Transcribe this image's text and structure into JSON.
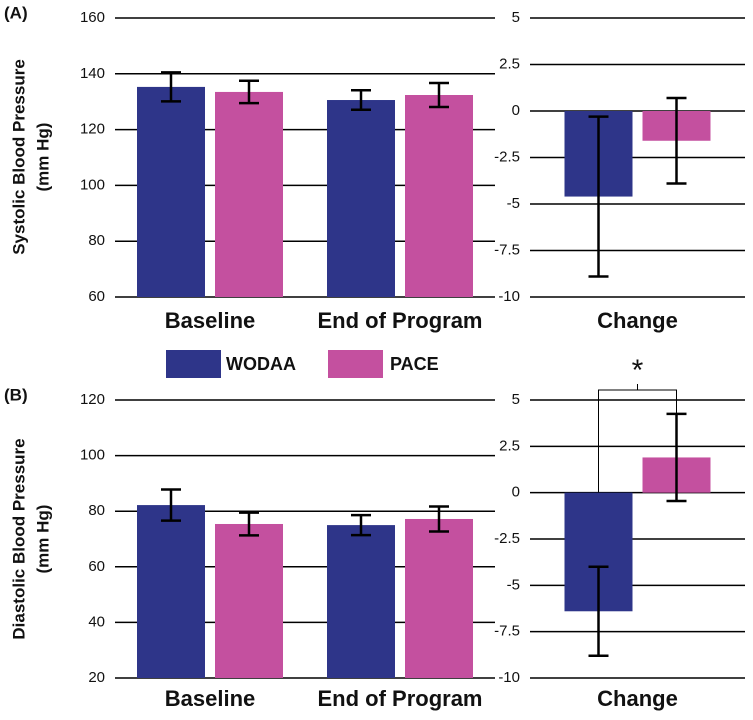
{
  "chart_data": [
    {
      "type": "bar",
      "panel_label": "(A)",
      "ylabel": [
        "Systolic Blood Pressure",
        "(mm Hg)"
      ],
      "categories": [
        "Baseline",
        "End of Program"
      ],
      "series": [
        {
          "name": "WODAA",
          "color": "#2e3589",
          "values": [
            135.3,
            130.6
          ],
          "errors": [
            5.2,
            3.5
          ]
        },
        {
          "name": "PACE",
          "color": "#c4509f",
          "values": [
            133.5,
            132.4
          ],
          "errors": [
            4.0,
            4.3
          ]
        }
      ],
      "ylim": [
        60,
        160
      ],
      "yticks": [
        60,
        80,
        100,
        120,
        140,
        160
      ],
      "grid": true,
      "legend": true
    },
    {
      "type": "bar",
      "categories": [
        "Change"
      ],
      "series": [
        {
          "color": "#2e3589",
          "values": [
            -4.6
          ],
          "errors": [
            4.3
          ]
        },
        {
          "color": "#c4509f",
          "values": [
            -1.6
          ],
          "errors": [
            2.3
          ]
        }
      ],
      "ylim": [
        -10,
        5
      ],
      "yticks": [
        -10,
        -7.5,
        -5,
        -2.5,
        0,
        2.5,
        5
      ],
      "grid": true
    },
    {
      "type": "bar",
      "panel_label": "(B)",
      "ylabel": [
        "Diastolic Blood Pressure",
        "(mm Hg)"
      ],
      "categories": [
        "Baseline",
        "End of Program"
      ],
      "series": [
        {
          "color": "#2e3589",
          "values": [
            82.2,
            75.0
          ],
          "errors": [
            5.6,
            3.6
          ]
        },
        {
          "color": "#c4509f",
          "values": [
            75.4,
            77.2
          ],
          "errors": [
            4.1,
            4.5
          ]
        }
      ],
      "ylim": [
        20,
        120
      ],
      "yticks": [
        20,
        40,
        60,
        80,
        100,
        120
      ],
      "grid": true
    },
    {
      "type": "bar",
      "categories": [
        "Change"
      ],
      "annotation": "*",
      "series": [
        {
          "color": "#2e3589",
          "values": [
            -6.4
          ],
          "errors": [
            2.4
          ]
        },
        {
          "color": "#c4509f",
          "values": [
            1.9
          ],
          "errors": [
            2.35
          ]
        }
      ],
      "ylim": [
        -10,
        5
      ],
      "yticks": [
        -10,
        -7.5,
        -5,
        -2.5,
        0,
        2.5,
        5
      ],
      "grid": true
    }
  ]
}
